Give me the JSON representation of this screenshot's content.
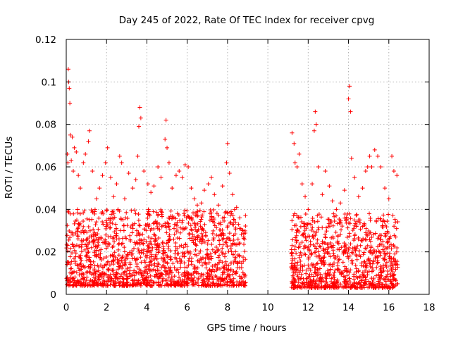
{
  "chart_data": {
    "type": "scatter",
    "title": "Day 245 of 2022, Rate Of TEC Index for receiver cpvg",
    "xlabel": "GPS time / hours",
    "ylabel": "ROTI / TECUs",
    "xlim": [
      0,
      18
    ],
    "ylim": [
      0,
      0.12
    ],
    "xticks": [
      0,
      2,
      4,
      6,
      8,
      10,
      12,
      14,
      16,
      18
    ],
    "xtick_labels": [
      "0",
      "2",
      "4",
      "6",
      "8",
      "10",
      "12",
      "14",
      "16",
      "18"
    ],
    "yticks": [
      0,
      0.02,
      0.04,
      0.06,
      0.08,
      0.1,
      0.12
    ],
    "ytick_labels": [
      "0",
      "0.02",
      "0.04",
      "0.06",
      "0.08",
      "0.1",
      "0.12"
    ],
    "grid": true,
    "marker": "+",
    "color": "#ff0000",
    "series": [
      {
        "points": [
          [
            0.1,
            0.106
          ],
          [
            0.12,
            0.1
          ],
          [
            0.15,
            0.097
          ],
          [
            0.18,
            0.09
          ],
          [
            0.05,
            0.066
          ],
          [
            0.08,
            0.062
          ],
          [
            0.2,
            0.075
          ],
          [
            0.3,
            0.074
          ],
          [
            0.25,
            0.063
          ],
          [
            0.35,
            0.058
          ],
          [
            0.4,
            0.069
          ],
          [
            0.5,
            0.067
          ],
          [
            0.6,
            0.056
          ],
          [
            0.7,
            0.05
          ],
          [
            0.85,
            0.062
          ],
          [
            0.95,
            0.066
          ],
          [
            1.1,
            0.072
          ],
          [
            1.15,
            0.077
          ],
          [
            1.3,
            0.058
          ],
          [
            1.5,
            0.045
          ],
          [
            1.65,
            0.05
          ],
          [
            1.8,
            0.056
          ],
          [
            1.95,
            0.062
          ],
          [
            2.05,
            0.069
          ],
          [
            2.2,
            0.055
          ],
          [
            2.35,
            0.046
          ],
          [
            2.5,
            0.052
          ],
          [
            2.65,
            0.065
          ],
          [
            2.75,
            0.062
          ],
          [
            2.9,
            0.045
          ],
          [
            3.1,
            0.057
          ],
          [
            3.3,
            0.05
          ],
          [
            3.45,
            0.054
          ],
          [
            3.55,
            0.065
          ],
          [
            3.6,
            0.079
          ],
          [
            3.65,
            0.088
          ],
          [
            3.7,
            0.083
          ],
          [
            3.85,
            0.058
          ],
          [
            4.05,
            0.052
          ],
          [
            4.2,
            0.048
          ],
          [
            4.35,
            0.051
          ],
          [
            4.55,
            0.06
          ],
          [
            4.7,
            0.055
          ],
          [
            4.9,
            0.073
          ],
          [
            4.95,
            0.082
          ],
          [
            5.0,
            0.069
          ],
          [
            5.1,
            0.062
          ],
          [
            5.25,
            0.05
          ],
          [
            5.45,
            0.056
          ],
          [
            5.6,
            0.058
          ],
          [
            5.75,
            0.055
          ],
          [
            5.9,
            0.061
          ],
          [
            6.05,
            0.06
          ],
          [
            6.2,
            0.05
          ],
          [
            6.35,
            0.045
          ],
          [
            6.5,
            0.042
          ],
          [
            6.7,
            0.043
          ],
          [
            6.85,
            0.049
          ],
          [
            7.05,
            0.052
          ],
          [
            7.2,
            0.055
          ],
          [
            7.35,
            0.047
          ],
          [
            7.55,
            0.042
          ],
          [
            7.75,
            0.051
          ],
          [
            7.95,
            0.062
          ],
          [
            8.0,
            0.071
          ],
          [
            8.1,
            0.057
          ],
          [
            8.25,
            0.047
          ],
          [
            8.45,
            0.041
          ],
          [
            8.6,
            0.031
          ],
          [
            8.8,
            0.027
          ],
          [
            11.2,
            0.076
          ],
          [
            11.3,
            0.071
          ],
          [
            11.35,
            0.062
          ],
          [
            11.45,
            0.06
          ],
          [
            11.55,
            0.066
          ],
          [
            11.7,
            0.052
          ],
          [
            11.85,
            0.046
          ],
          [
            12.0,
            0.04
          ],
          [
            12.2,
            0.052
          ],
          [
            12.3,
            0.077
          ],
          [
            12.35,
            0.086
          ],
          [
            12.4,
            0.08
          ],
          [
            12.5,
            0.06
          ],
          [
            12.7,
            0.047
          ],
          [
            12.85,
            0.058
          ],
          [
            13.05,
            0.051
          ],
          [
            13.2,
            0.044
          ],
          [
            13.4,
            0.04
          ],
          [
            13.6,
            0.043
          ],
          [
            13.8,
            0.049
          ],
          [
            14.0,
            0.092
          ],
          [
            14.05,
            0.098
          ],
          [
            14.1,
            0.086
          ],
          [
            14.15,
            0.064
          ],
          [
            14.3,
            0.055
          ],
          [
            14.5,
            0.046
          ],
          [
            14.7,
            0.05
          ],
          [
            14.85,
            0.058
          ],
          [
            14.95,
            0.06
          ],
          [
            15.05,
            0.065
          ],
          [
            15.15,
            0.06
          ],
          [
            15.3,
            0.068
          ],
          [
            15.45,
            0.065
          ],
          [
            15.6,
            0.06
          ],
          [
            15.8,
            0.05
          ],
          [
            16.0,
            0.045
          ],
          [
            16.15,
            0.065
          ],
          [
            16.25,
            0.058
          ],
          [
            16.4,
            0.056
          ]
        ],
        "dense_band": [
          {
            "x_range": [
              0.0,
              8.9
            ],
            "y_range": [
              0.004,
              0.04
            ],
            "count": 1500
          },
          {
            "x_range": [
              11.15,
              16.45
            ],
            "y_range": [
              0.003,
              0.038
            ],
            "count": 900
          }
        ]
      }
    ]
  }
}
